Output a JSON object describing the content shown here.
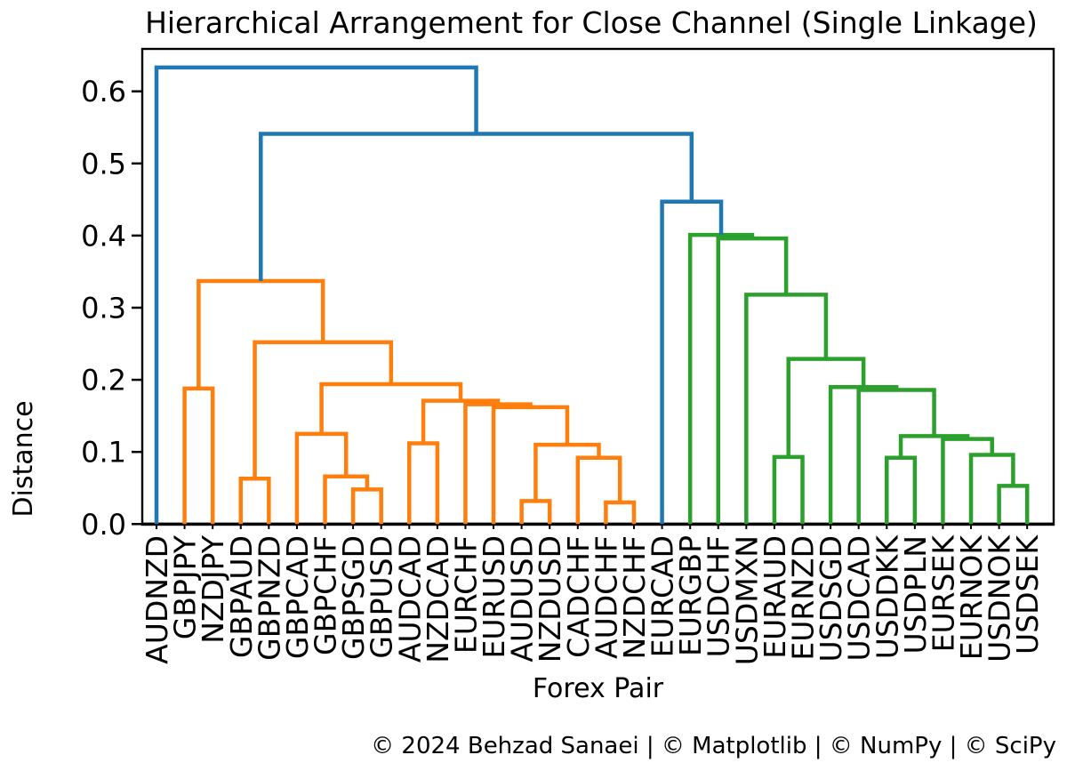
{
  "chart_data": {
    "type": "dendrogram",
    "title": "Hierarchical Arrangement for Close Channel (Single Linkage)",
    "xlabel": "Forex Pair",
    "ylabel": "Distance",
    "footer": "© 2024 Behzad Sanaei | © Matplotlib | © NumPy | © SciPy",
    "ylim": [
      0.0,
      0.659
    ],
    "yticks": [
      "0.0",
      "0.1",
      "0.2",
      "0.3",
      "0.4",
      "0.5",
      "0.6"
    ],
    "grid": false,
    "colors": {
      "blue": "#1f77b4",
      "orange": "#ff7f0e",
      "green": "#2ca02c"
    },
    "axis_color": "#000000",
    "leaves": [
      "AUDNZD",
      "GBPJPY",
      "NZDJPY",
      "GBPAUD",
      "GBPNZD",
      "GBPCAD",
      "GBPCHF",
      "GBPSGD",
      "GBPUSD",
      "AUDCAD",
      "NZDCAD",
      "EURCHF",
      "EURUSD",
      "AUDUSD",
      "NZDUSD",
      "CADCHF",
      "AUDCHF",
      "NZDCHF",
      "EURCAD",
      "EURGBP",
      "USDCHF",
      "USDMXN",
      "EURAUD",
      "EURNZD",
      "USDSGD",
      "USDCAD",
      "USDDKK",
      "USDPLN",
      "EURSEK",
      "EURNOK",
      "USDNOK",
      "USDSEK"
    ],
    "merges": [
      {
        "a": 7,
        "b": 8,
        "h": 0.048,
        "c": "orange"
      },
      {
        "a": 6,
        "b": 32,
        "h": 0.066,
        "c": "orange"
      },
      {
        "a": 5,
        "b": 33,
        "h": 0.125,
        "c": "orange"
      },
      {
        "a": 13,
        "b": 14,
        "h": 0.032,
        "c": "orange"
      },
      {
        "a": 16,
        "b": 17,
        "h": 0.03,
        "c": "orange"
      },
      {
        "a": 15,
        "b": 36,
        "h": 0.092,
        "c": "orange"
      },
      {
        "a": 35,
        "b": 37,
        "h": 0.11,
        "c": "orange"
      },
      {
        "a": 12,
        "b": 38,
        "h": 0.162,
        "c": "orange"
      },
      {
        "a": 11,
        "b": 39,
        "h": 0.166,
        "c": "orange"
      },
      {
        "a": 9,
        "b": 10,
        "h": 0.112,
        "c": "orange"
      },
      {
        "a": 41,
        "b": 40,
        "h": 0.171,
        "c": "orange"
      },
      {
        "a": 34,
        "b": 42,
        "h": 0.194,
        "c": "orange"
      },
      {
        "a": 3,
        "b": 4,
        "h": 0.063,
        "c": "orange"
      },
      {
        "a": 44,
        "b": 43,
        "h": 0.252,
        "c": "orange"
      },
      {
        "a": 1,
        "b": 2,
        "h": 0.188,
        "c": "orange"
      },
      {
        "a": 46,
        "b": 45,
        "h": 0.337,
        "c": "orange"
      },
      {
        "a": 30,
        "b": 31,
        "h": 0.053,
        "c": "green"
      },
      {
        "a": 29,
        "b": 48,
        "h": 0.096,
        "c": "green"
      },
      {
        "a": 28,
        "b": 49,
        "h": 0.118,
        "c": "green"
      },
      {
        "a": 26,
        "b": 27,
        "h": 0.092,
        "c": "green"
      },
      {
        "a": 51,
        "b": 50,
        "h": 0.122,
        "c": "green"
      },
      {
        "a": 25,
        "b": 52,
        "h": 0.186,
        "c": "green"
      },
      {
        "a": 24,
        "b": 53,
        "h": 0.19,
        "c": "green"
      },
      {
        "a": 22,
        "b": 23,
        "h": 0.093,
        "c": "green"
      },
      {
        "a": 55,
        "b": 54,
        "h": 0.229,
        "c": "green"
      },
      {
        "a": 21,
        "b": 56,
        "h": 0.318,
        "c": "green"
      },
      {
        "a": 20,
        "b": 57,
        "h": 0.396,
        "c": "green"
      },
      {
        "a": 19,
        "b": 58,
        "h": 0.401,
        "c": "green"
      },
      {
        "a": 18,
        "b": 59,
        "h": 0.447,
        "c": "blue"
      },
      {
        "a": 47,
        "b": 60,
        "h": 0.541,
        "c": "blue"
      },
      {
        "a": 0,
        "b": 61,
        "h": 0.633,
        "c": "blue"
      }
    ]
  }
}
